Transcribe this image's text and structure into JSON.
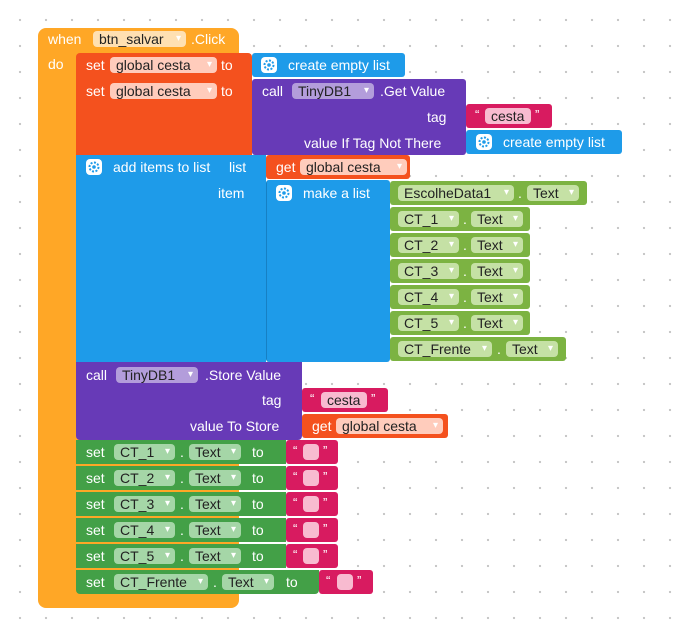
{
  "event": {
    "when": "when",
    "component": "btn_salvar",
    "event_name": ".Click",
    "do": "do"
  },
  "kw": {
    "set": "set",
    "to": "to",
    "call": "call",
    "get": "get",
    "tag": "tag",
    "value_if_tag_not_there": "value If Tag Not There",
    "create_empty_list": "create empty list",
    "add_items_to_list": "add items to list",
    "list": "list",
    "item": "item",
    "make_a_list": "make a list",
    "get_value": ".Get Value",
    "store_value": ".Store Value",
    "value_to_store": "value To Store",
    "text": "Text",
    "dot": "."
  },
  "vars": {
    "global_cesta": "global cesta"
  },
  "components": {
    "tinydb": "TinyDB1",
    "escolhedata": "EscolheData1",
    "ct1": "CT_1",
    "ct2": "CT_2",
    "ct3": "CT_3",
    "ct4": "CT_4",
    "ct5": "CT_5",
    "ctfrente": "CT_Frente"
  },
  "strings": {
    "cesta": "cesta",
    "quote_open": "“",
    "quote_close": "”"
  },
  "colors": {
    "control": "#FFA726",
    "variables": "#F4511E",
    "lists": "#1E9BE9",
    "tinydb": "#673AB7",
    "text": "#D81B60",
    "component_text": "#43A047",
    "component_text_light": "#7CB342"
  }
}
